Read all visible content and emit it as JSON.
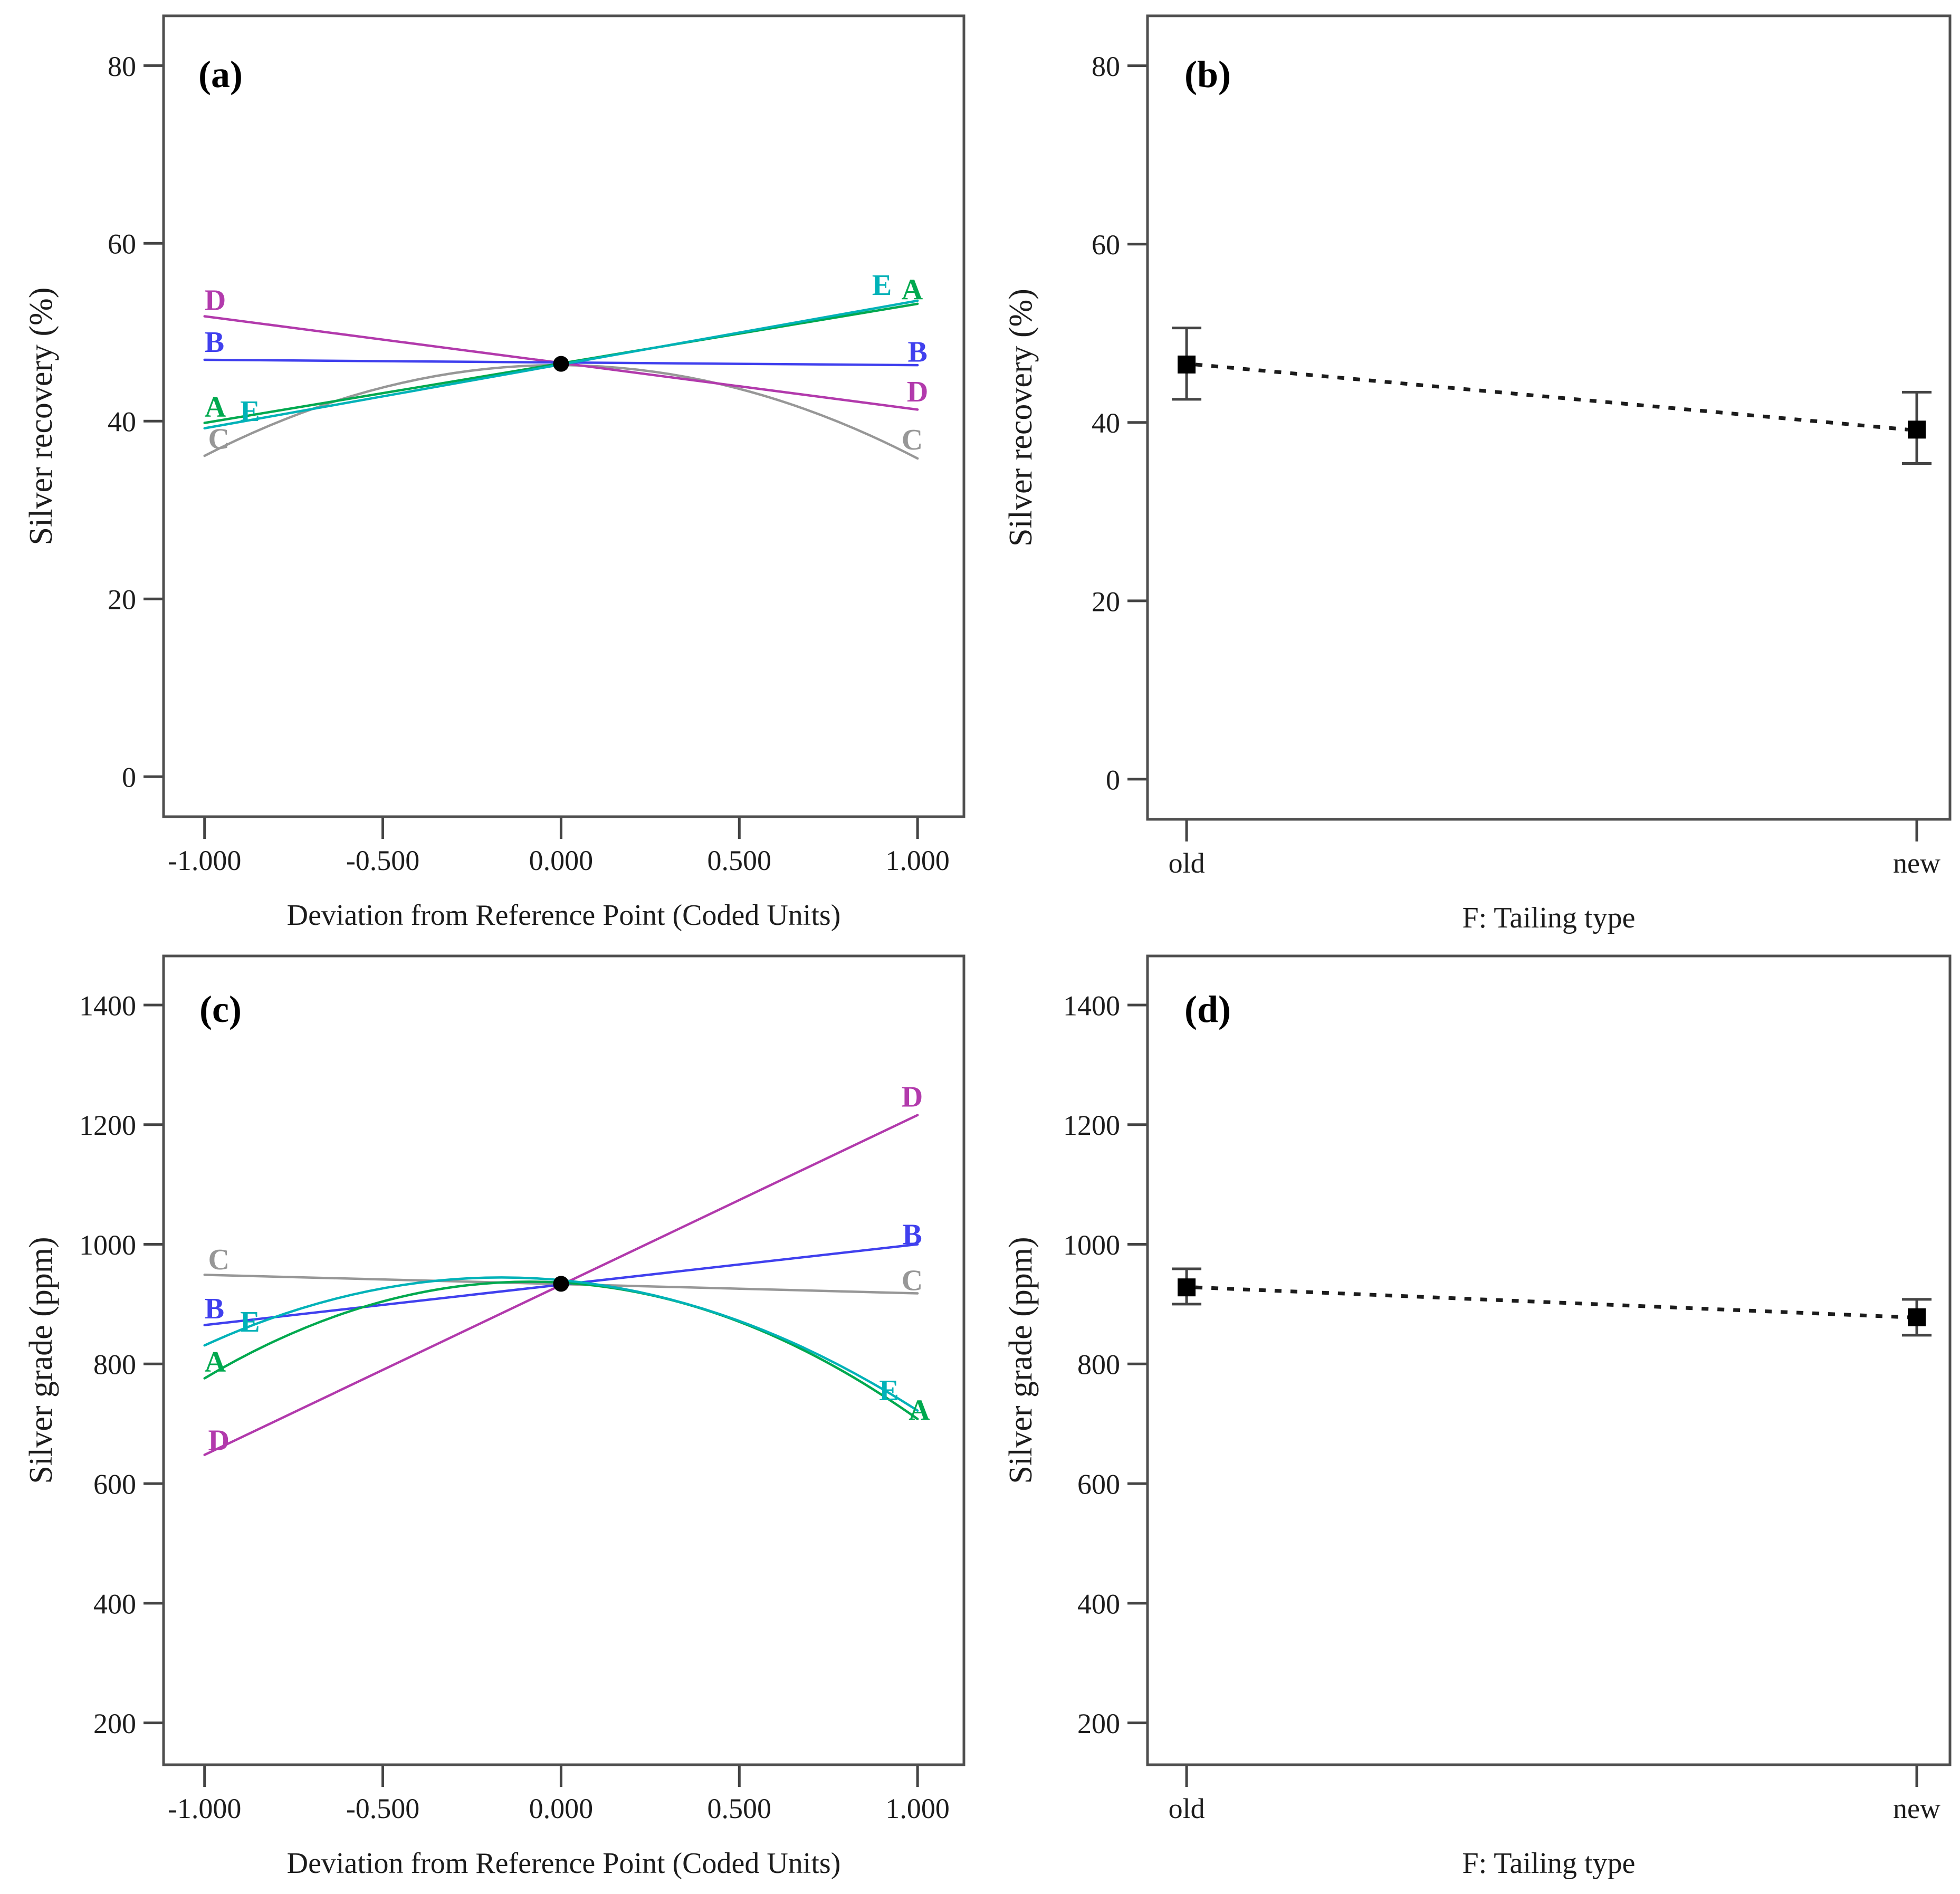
{
  "colors": {
    "A": "#00A94F",
    "B": "#4040EE",
    "C": "#979797",
    "D": "#B23AAC",
    "E": "#00B2B8",
    "marker": "#000000",
    "whisker": "#444444",
    "border": "#4F4F4F",
    "text": "#1C1C1C"
  },
  "chart_data": [
    {
      "id": "a",
      "type": "line",
      "panel_letter": "(a)",
      "xlabel": "Deviation from Reference Point (Coded Units)",
      "ylabel": "Silver recovery (%)",
      "xlim": [
        -1.115,
        1.13
      ],
      "ylim": [
        -4.5,
        85.6
      ],
      "x_ticks": [
        {
          "value": -1,
          "label": "-1.000"
        },
        {
          "value": -0.5,
          "label": "-0.500"
        },
        {
          "value": 0,
          "label": "0.000"
        },
        {
          "value": 0.5,
          "label": "0.500"
        },
        {
          "value": 1,
          "label": "1.000"
        }
      ],
      "y_ticks": [
        {
          "value": 0,
          "label": "0"
        },
        {
          "value": 20,
          "label": "20"
        },
        {
          "value": 40,
          "label": "40"
        },
        {
          "value": 60,
          "label": "60"
        },
        {
          "value": 80,
          "label": "80"
        }
      ],
      "x": [
        -1,
        0,
        1
      ],
      "series": [
        {
          "name": "C",
          "color_key": "C",
          "values": [
            36.1,
            46.3,
            35.8
          ]
        },
        {
          "name": "D",
          "color_key": "D",
          "values": [
            51.8,
            46.55,
            41.3
          ]
        },
        {
          "name": "B",
          "color_key": "B",
          "values": [
            46.9,
            46.6,
            46.3
          ]
        },
        {
          "name": "A",
          "color_key": "A",
          "values": [
            39.8,
            46.45,
            53.2
          ]
        },
        {
          "name": "E",
          "color_key": "E",
          "values": [
            39.2,
            46.3,
            53.55
          ]
        }
      ],
      "center_point": {
        "x": 0,
        "y": 46.45
      },
      "line_labels": [
        {
          "text": "D",
          "color_key": "D",
          "x": -1.0,
          "y": 53.7,
          "anchor": "start"
        },
        {
          "text": "B",
          "color_key": "B",
          "x": -1.0,
          "y": 49.0,
          "anchor": "start"
        },
        {
          "text": "A",
          "color_key": "A",
          "x": -1.0,
          "y": 41.7,
          "anchor": "start"
        },
        {
          "text": "E",
          "color_key": "E",
          "x": -0.9,
          "y": 41.2,
          "anchor": "start"
        },
        {
          "text": "C",
          "color_key": "C",
          "x": -0.99,
          "y": 38.1,
          "anchor": "start"
        },
        {
          "text": "E",
          "color_key": "E",
          "x": 0.9,
          "y": 55.4,
          "anchor": "middle"
        },
        {
          "text": "A",
          "color_key": "A",
          "x": 0.985,
          "y": 54.9,
          "anchor": "middle"
        },
        {
          "text": "B",
          "color_key": "B",
          "x": 1.0,
          "y": 47.9,
          "anchor": "middle"
        },
        {
          "text": "D",
          "color_key": "D",
          "x": 1.0,
          "y": 43.4,
          "anchor": "middle"
        },
        {
          "text": "C",
          "color_key": "C",
          "x": 0.985,
          "y": 38.0,
          "anchor": "middle"
        }
      ]
    },
    {
      "id": "b",
      "type": "effect",
      "panel_letter": "(b)",
      "xlabel": "F: Tailing type",
      "ylabel": "Silver recovery (%)",
      "ylim": [
        -4.5,
        85.6
      ],
      "y_ticks": [
        {
          "value": 0,
          "label": "0"
        },
        {
          "value": 20,
          "label": "20"
        },
        {
          "value": 40,
          "label": "40"
        },
        {
          "value": 60,
          "label": "60"
        },
        {
          "value": 80,
          "label": "80"
        }
      ],
      "categories": [
        "old",
        "new"
      ],
      "points": [
        {
          "category": "old",
          "mean": 46.5,
          "low": 42.6,
          "high": 50.6
        },
        {
          "category": "new",
          "mean": 39.2,
          "low": 35.4,
          "high": 43.4
        }
      ]
    },
    {
      "id": "c",
      "type": "line",
      "panel_letter": "(c)",
      "xlabel": "Deviation from Reference Point (Coded Units)",
      "ylabel": "Silver grade (ppm)",
      "xlim": [
        -1.115,
        1.13
      ],
      "ylim": [
        130,
        1482
      ],
      "x_ticks": [
        {
          "value": -1,
          "label": "-1.000"
        },
        {
          "value": -0.5,
          "label": "-0.500"
        },
        {
          "value": 0,
          "label": "0.000"
        },
        {
          "value": 0.5,
          "label": "0.500"
        },
        {
          "value": 1,
          "label": "1.000"
        }
      ],
      "y_ticks": [
        {
          "value": 200,
          "label": "200"
        },
        {
          "value": 400,
          "label": "400"
        },
        {
          "value": 600,
          "label": "600"
        },
        {
          "value": 800,
          "label": "800"
        },
        {
          "value": 1000,
          "label": "1000"
        },
        {
          "value": 1200,
          "label": "1200"
        },
        {
          "value": 1400,
          "label": "1400"
        }
      ],
      "x": [
        -1,
        0,
        1
      ],
      "series": [
        {
          "name": "C",
          "color_key": "C",
          "values": [
            949,
            934,
            918
          ]
        },
        {
          "name": "D",
          "color_key": "D",
          "values": [
            648,
            932,
            1216
          ]
        },
        {
          "name": "B",
          "color_key": "B",
          "values": [
            865,
            933,
            1000
          ]
        },
        {
          "name": "A",
          "color_key": "A",
          "values": [
            776,
            936,
            708
          ]
        },
        {
          "name": "E",
          "color_key": "E",
          "values": [
            831,
            940,
            722
          ]
        }
      ],
      "center_point": {
        "x": 0,
        "y": 934
      },
      "line_labels": [
        {
          "text": "C",
          "color_key": "C",
          "x": -0.99,
          "y": 976,
          "anchor": "start"
        },
        {
          "text": "B",
          "color_key": "B",
          "x": -1.0,
          "y": 894,
          "anchor": "start"
        },
        {
          "text": "E",
          "color_key": "E",
          "x": -0.9,
          "y": 872,
          "anchor": "start"
        },
        {
          "text": "A",
          "color_key": "A",
          "x": -1.0,
          "y": 805,
          "anchor": "start"
        },
        {
          "text": "D",
          "color_key": "D",
          "x": -0.99,
          "y": 674,
          "anchor": "start"
        },
        {
          "text": "D",
          "color_key": "D",
          "x": 0.985,
          "y": 1248,
          "anchor": "middle"
        },
        {
          "text": "B",
          "color_key": "B",
          "x": 0.985,
          "y": 1018,
          "anchor": "middle"
        },
        {
          "text": "C",
          "color_key": "C",
          "x": 0.985,
          "y": 941,
          "anchor": "middle"
        },
        {
          "text": "E",
          "color_key": "E",
          "x": 0.92,
          "y": 757,
          "anchor": "middle"
        },
        {
          "text": "A",
          "color_key": "A",
          "x": 1.005,
          "y": 724,
          "anchor": "middle"
        }
      ]
    },
    {
      "id": "d",
      "type": "effect",
      "panel_letter": "(d)",
      "xlabel": "F: Tailing type",
      "ylabel": "Silver grade (ppm)",
      "ylim": [
        130,
        1482
      ],
      "y_ticks": [
        {
          "value": 200,
          "label": "200"
        },
        {
          "value": 400,
          "label": "400"
        },
        {
          "value": 600,
          "label": "600"
        },
        {
          "value": 800,
          "label": "800"
        },
        {
          "value": 1000,
          "label": "1000"
        },
        {
          "value": 1200,
          "label": "1200"
        },
        {
          "value": 1400,
          "label": "1400"
        }
      ],
      "categories": [
        "old",
        "new"
      ],
      "points": [
        {
          "category": "old",
          "mean": 928,
          "low": 900,
          "high": 959
        },
        {
          "category": "new",
          "mean": 878,
          "low": 848,
          "high": 908
        }
      ]
    }
  ]
}
